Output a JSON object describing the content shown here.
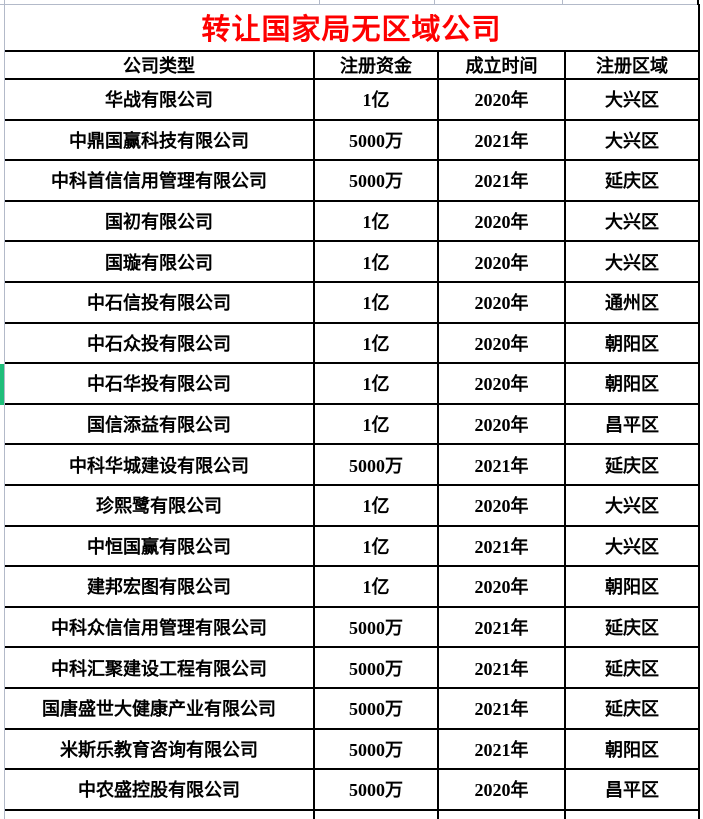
{
  "title": {
    "text": "转让国家局无区域公司"
  },
  "table": {
    "headers": [
      "公司类型",
      "注册资金",
      "成立时间",
      "注册区域"
    ],
    "rows": [
      [
        "华战有限公司",
        "1亿",
        "2020年",
        "大兴区"
      ],
      [
        "中鼎国赢科技有限公司",
        "5000万",
        "2021年",
        "大兴区"
      ],
      [
        "中科首信信用管理有限公司",
        "5000万",
        "2021年",
        "延庆区"
      ],
      [
        "国初有限公司",
        "1亿",
        "2020年",
        "大兴区"
      ],
      [
        "国璇有限公司",
        "1亿",
        "2020年",
        "大兴区"
      ],
      [
        "中石信投有限公司",
        "1亿",
        "2020年",
        "通州区"
      ],
      [
        "中石众投有限公司",
        "1亿",
        "2020年",
        "朝阳区"
      ],
      [
        "中石华投有限公司",
        "1亿",
        "2020年",
        "朝阳区"
      ],
      [
        "国信添益有限公司",
        "1亿",
        "2020年",
        "昌平区"
      ],
      [
        "中科华城建设有限公司",
        "5000万",
        "2021年",
        "延庆区"
      ],
      [
        "珍熙鹭有限公司",
        "1亿",
        "2020年",
        "大兴区"
      ],
      [
        "中恒国赢有限公司",
        "1亿",
        "2021年",
        "大兴区"
      ],
      [
        "建邦宏图有限公司",
        "1亿",
        "2020年",
        "朝阳区"
      ],
      [
        "中科众信信用管理有限公司",
        "5000万",
        "2021年",
        "延庆区"
      ],
      [
        "中科汇聚建设工程有限公司",
        "5000万",
        "2021年",
        "延庆区"
      ],
      [
        "国唐盛世大健康产业有限公司",
        "5000万",
        "2021年",
        "延庆区"
      ],
      [
        "米斯乐教育咨询有限公司",
        "5000万",
        "2021年",
        "朝阳区"
      ],
      [
        "中农盛控股有限公司",
        "5000万",
        "2020年",
        "昌平区"
      ]
    ]
  },
  "row_marker": {
    "marked_company": "中石华投有限公司",
    "marked_row_index": 8
  },
  "colors": {
    "title_red": "#FE0000",
    "border_black": "#000000",
    "gridline": "#B3BAC9",
    "marker_green": "#1FBE7A",
    "background": "#FFFFFF"
  }
}
